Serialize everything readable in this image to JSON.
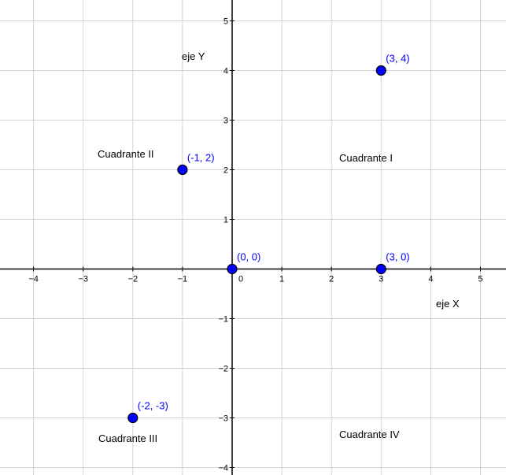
{
  "chart_data": {
    "type": "scatter",
    "title": "",
    "xlabel": "eje X",
    "ylabel": "eje Y",
    "grid": true,
    "x_ticks": [
      -4,
      -3,
      -2,
      -1,
      1,
      2,
      3,
      4,
      5
    ],
    "y_ticks": [
      5,
      4,
      3,
      2,
      1,
      -1,
      -2,
      -3,
      -4
    ],
    "origin_label": "0",
    "points": [
      {
        "x": 3,
        "y": 4,
        "label": "(3, 4)"
      },
      {
        "x": -1,
        "y": 2,
        "label": "(-1, 2)"
      },
      {
        "x": 0,
        "y": 0,
        "label": "(0, 0)"
      },
      {
        "x": 3,
        "y": 0,
        "label": "(3, 0)"
      },
      {
        "x": -2,
        "y": -3,
        "label": "(-2, -3)"
      }
    ],
    "quadrant_labels": [
      {
        "quadrant": "I",
        "text": "Cuadrante I"
      },
      {
        "quadrant": "II",
        "text": "Cuadrante II"
      },
      {
        "quadrant": "III",
        "text": "Cuadrante III"
      },
      {
        "quadrant": "IV",
        "text": "Cuadrante IV"
      }
    ],
    "colors": {
      "point_fill": "#0000ff",
      "point_stroke": "#000000",
      "point_label": "#0000ff",
      "grid": "#d3d3d3",
      "axis": "#000000"
    }
  }
}
